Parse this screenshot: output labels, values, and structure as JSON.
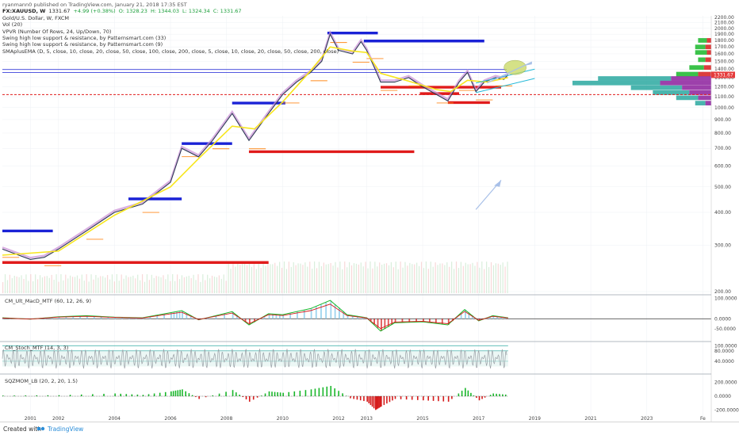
{
  "header": {
    "publisher_line": "ryanmann0 published on TradingView.com, January 21, 2018 17:35 EST",
    "symbol": "FX:XAUUSD, W",
    "last": "1331.67",
    "change": "+4.99 (+0.38%)",
    "open": "O: 1328.23",
    "high": "H: 1344.03",
    "low": "L: 1324.34",
    "close": "C: 1331.67"
  },
  "indicators": [
    "Gold/U.S. Dollar, W, FXCM",
    "Vol (20)",
    "VPVR (Number Of Rows, 24, Up/Down, 70)",
    "Swing high low support & resistance, by Patternsmart.com (33)",
    "Swing high low support & resistance, by Patternsmart.com (9)",
    "SMAplusEMA (D, 5, close, 10, close, 20, close, 50, close, 100, close, 200, close, 5, close, 10, close, 20, close, 50, close, 200, close)"
  ],
  "panes": {
    "macd_label": "CM_Ult_MacD_MTF (60, 12, 26, 9)",
    "stoch_label": "CM_Stoch_MTF (14, 3, 3)",
    "sqz_label": "SQZMOM_LB (20, 2, 20, 1.5)"
  },
  "footer": {
    "created_with": "Created with",
    "brand": "TradingView"
  },
  "colors": {
    "price": "#2e3b55",
    "sma": "#f7e61d",
    "ema": "#c98fd6",
    "support": "#e01b1b",
    "resistance": "#1a22d6",
    "orange": "#ff8a1c",
    "green": "#19b72a",
    "red": "#d61b1b",
    "teal": "#2aa8a0",
    "purple": "#8c1f9c",
    "price_tag": "#e53b3b",
    "channel": "#23b8d8",
    "projection": "#a8c0e8"
  },
  "chart_data": {
    "type": "line",
    "title": "Gold/U.S. Dollar, W, FXCM",
    "ylim": [
      200,
      2200
    ],
    "y_scale": "log",
    "y_ticks": [
      2200,
      2100,
      2000,
      1900,
      1800,
      1700,
      1600,
      1500,
      1400,
      1300,
      1200,
      1100,
      1000,
      900,
      800,
      700,
      600,
      500,
      400,
      300,
      200
    ],
    "x_ticks": [
      "2001",
      "2002",
      "2004",
      "2006",
      "2008",
      "2010",
      "2012",
      "2013",
      "2015",
      "2017",
      "2019",
      "2021",
      "2023",
      "Fe"
    ],
    "x_tick_years": [
      2001,
      2002,
      2004,
      2006,
      2008,
      2010,
      2012,
      2013,
      2015,
      2017,
      2019,
      2021,
      2023,
      2025
    ],
    "xlim_years": [
      2000.0,
      2025.3
    ],
    "last_price_label": "1331.67",
    "last_price": 1331.67,
    "price_series": {
      "name": "XAUUSD",
      "x": [
        2000.0,
        2001.0,
        2001.5,
        2002.0,
        2003.0,
        2004.0,
        2005.0,
        2006.0,
        2006.4,
        2007.0,
        2007.5,
        2008.2,
        2008.8,
        2009.5,
        2010.0,
        2010.5,
        2011.0,
        2011.4,
        2011.7,
        2012.0,
        2012.5,
        2012.8,
        2013.0,
        2013.3,
        2013.5,
        2014.0,
        2014.5,
        2015.0,
        2015.5,
        2015.9,
        2016.3,
        2016.6,
        2016.9,
        2017.2,
        2017.6,
        2017.9,
        2018.05
      ],
      "values": [
        290,
        265,
        270,
        290,
        340,
        400,
        430,
        520,
        700,
        650,
        750,
        950,
        750,
        950,
        1120,
        1250,
        1360,
        1500,
        1900,
        1650,
        1600,
        1780,
        1650,
        1400,
        1250,
        1250,
        1300,
        1200,
        1120,
        1060,
        1250,
        1360,
        1150,
        1250,
        1300,
        1280,
        1331.67
      ]
    },
    "sma_series": {
      "name": "SMA",
      "x": [
        2000.0,
        2002.0,
        2004.0,
        2006.0,
        2007.0,
        2008.2,
        2009.0,
        2010.0,
        2011.0,
        2011.7,
        2012.5,
        2013.0,
        2013.5,
        2014.5,
        2015.5,
        2016.0,
        2016.6,
        2017.3,
        2018.05
      ],
      "values": [
        275,
        285,
        390,
        500,
        640,
        850,
        830,
        1050,
        1380,
        1700,
        1640,
        1620,
        1350,
        1260,
        1170,
        1150,
        1270,
        1250,
        1300
      ]
    },
    "support_lines": [
      {
        "price": 1120,
        "x1": 2000.0,
        "x2": 2025.3,
        "style": "dashed"
      },
      {
        "price": 1195,
        "x1": 2013.5,
        "x2": 2017.8
      },
      {
        "price": 1130,
        "x1": 2014.9,
        "x2": 2016.3
      },
      {
        "price": 1045,
        "x1": 2015.9,
        "x2": 2017.4
      },
      {
        "price": 680,
        "x1": 2008.8,
        "x2": 2014.7
      },
      {
        "price": 258,
        "x1": 2000.0,
        "x2": 2009.5
      }
    ],
    "resistance_lines": [
      {
        "price": 1920,
        "x1": 2011.6,
        "x2": 2013.4
      },
      {
        "price": 1790,
        "x1": 2012.9,
        "x2": 2017.2
      },
      {
        "price": 1040,
        "x1": 2008.2,
        "x2": 2010.1
      },
      {
        "price": 730,
        "x1": 2006.4,
        "x2": 2008.2
      },
      {
        "price": 450,
        "x1": 2004.5,
        "x2": 2006.4
      },
      {
        "price": 340,
        "x1": 2000.0,
        "x2": 2001.8
      },
      {
        "price": 1395,
        "x1": 2000.0,
        "x2": 2018.0
      },
      {
        "price": 1360,
        "x1": 2000.0,
        "x2": 2018.0
      }
    ],
    "volume_profile": [
      {
        "price": 1800,
        "up": 12,
        "down": 6
      },
      {
        "price": 1700,
        "up": 14,
        "down": 8
      },
      {
        "price": 1620,
        "up": 16,
        "down": 6
      },
      {
        "price": 1520,
        "up": 10,
        "down": 8
      },
      {
        "price": 1420,
        "up": 20,
        "down": 10
      },
      {
        "price": 1340,
        "up": 30,
        "down": 18
      },
      {
        "price": 1290,
        "up": 100,
        "down": 55
      },
      {
        "price": 1240,
        "up": 120,
        "down": 70
      },
      {
        "price": 1190,
        "up": 70,
        "down": 40
      },
      {
        "price": 1140,
        "up": 50,
        "down": 30
      },
      {
        "price": 1090,
        "up": 30,
        "down": 18
      },
      {
        "price": 1040,
        "up": 14,
        "down": 8
      }
    ],
    "macd": {
      "name": "CM_Ult_MacD_MTF",
      "ylim": [
        -100,
        110
      ],
      "y_ticks": [
        100,
        0,
        -50
      ],
      "y_tick_labels": [
        "100.0000",
        "0.0000",
        "-50.0000"
      ],
      "x": [
        2000.0,
        2001.0,
        2002.0,
        2003.0,
        2004.0,
        2005.0,
        2006.0,
        2006.4,
        2007.0,
        2008.2,
        2008.8,
        2009.5,
        2010.0,
        2011.0,
        2011.7,
        2012.3,
        2013.0,
        2013.5,
        2014.0,
        2015.0,
        2015.9,
        2016.5,
        2017.0,
        2017.5,
        2018.05
      ],
      "values": [
        5,
        -2,
        10,
        15,
        8,
        5,
        30,
        40,
        -5,
        35,
        -30,
        25,
        20,
        50,
        90,
        20,
        5,
        -60,
        -20,
        -15,
        -30,
        45,
        -10,
        15,
        5
      ]
    },
    "stoch": {
      "name": "CM_Stoch_MTF",
      "ylim": [
        0,
        110
      ],
      "y_ticks": [
        100,
        80,
        40
      ],
      "y_tick_labels": [
        "100.0000",
        "80.0000",
        "40.0000"
      ]
    },
    "sqz": {
      "name": "SQZMOM_LB",
      "ylim": [
        -300,
        300
      ],
      "y_ticks": [
        200,
        0,
        -200
      ],
      "y_tick_labels": [
        "200.0000",
        "0.0000",
        "-200.0000"
      ],
      "x": [
        2000.0,
        2002.0,
        2004.0,
        2005.0,
        2006.0,
        2006.4,
        2007.0,
        2008.2,
        2008.8,
        2009.5,
        2010.0,
        2011.0,
        2011.7,
        2012.4,
        2013.0,
        2013.3,
        2013.5,
        2014.0,
        2015.0,
        2015.9,
        2016.5,
        2017.0,
        2017.5,
        2018.05
      ],
      "values": [
        10,
        15,
        40,
        20,
        70,
        100,
        -40,
        90,
        -80,
        70,
        50,
        100,
        150,
        -30,
        -80,
        -200,
        -150,
        -40,
        -60,
        -80,
        120,
        -60,
        40,
        20
      ]
    }
  }
}
